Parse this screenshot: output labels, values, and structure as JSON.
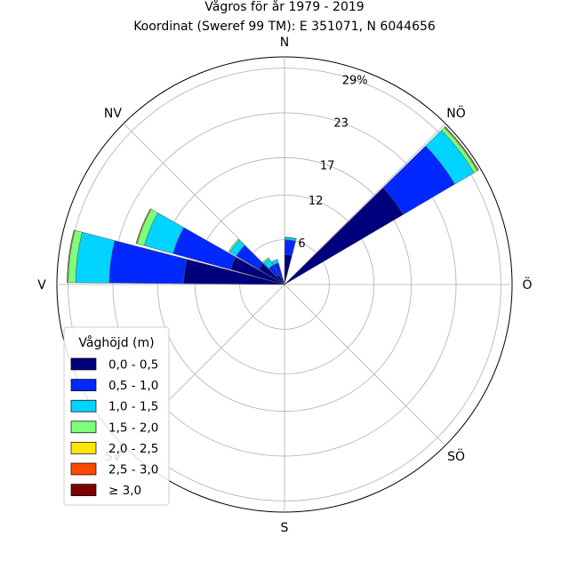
{
  "chart_data": {
    "type": "wind-rose",
    "title_line1": "Vågros för år 1979 - 2019",
    "title_line2": "Koordinat (Sweref 99 TM): E 351071, N 6044656",
    "directions": [
      {
        "label": "N",
        "angle": 0
      },
      {
        "label": "NÖ",
        "angle": 45
      },
      {
        "label": "Ö",
        "angle": 90
      },
      {
        "label": "SÖ",
        "angle": 135
      },
      {
        "label": "S",
        "angle": 180
      },
      {
        "label": "SV",
        "angle": 225
      },
      {
        "label": "V",
        "angle": 270
      },
      {
        "label": "NV",
        "angle": 315
      }
    ],
    "radial_ticks": [
      {
        "value": 6,
        "label": "6"
      },
      {
        "value": 12,
        "label": "12"
      },
      {
        "value": 17,
        "label": "17"
      },
      {
        "value": 23,
        "label": "23"
      },
      {
        "value": 29,
        "label": "29%"
      }
    ],
    "rmax": 30.5,
    "legend": {
      "title": "Våghöjd (m)",
      "position": "lower-left"
    },
    "bins": [
      {
        "label": "0,0 - 0,5",
        "color": "#00007f"
      },
      {
        "label": "0,5 - 1,0",
        "color": "#0028ff"
      },
      {
        "label": "1,0 - 1,5",
        "color": "#00d4ff"
      },
      {
        "label": "1,5 - 2,0",
        "color": "#7dff7a"
      },
      {
        "label": "2,0 - 2,5",
        "color": "#ffe600"
      },
      {
        "label": "2,5 - 3,0",
        "color": "#ff4800"
      },
      {
        "label": "≥ 3,0",
        "color": "#7f0000"
      }
    ],
    "sectors": [
      {
        "angle": 7.5,
        "values": [
          4.0,
          2.0,
          0.3,
          0.05,
          0,
          0,
          0
        ]
      },
      {
        "angle": 52.5,
        "values": [
          18.5,
          8.0,
          3.0,
          0.5,
          0.1,
          0.05,
          0.05
        ]
      },
      {
        "angle": 337.5,
        "values": [
          1.0,
          2.0,
          0.5,
          0,
          0,
          0,
          0
        ]
      },
      {
        "angle": 322.5,
        "values": [
          1.5,
          1.5,
          1.0,
          0.2,
          0,
          0,
          0
        ]
      },
      {
        "angle": 307.5,
        "values": [
          4.0,
          3.5,
          1.0,
          0.2,
          0,
          0,
          0
        ]
      },
      {
        "angle": 292.5,
        "values": [
          7.5,
          8.0,
          4.0,
          1.0,
          0.1,
          0.05,
          0
        ]
      },
      {
        "angle": 277.5,
        "values": [
          13.5,
          10.0,
          4.5,
          1.0,
          0.1,
          0.05,
          0
        ]
      }
    ]
  }
}
